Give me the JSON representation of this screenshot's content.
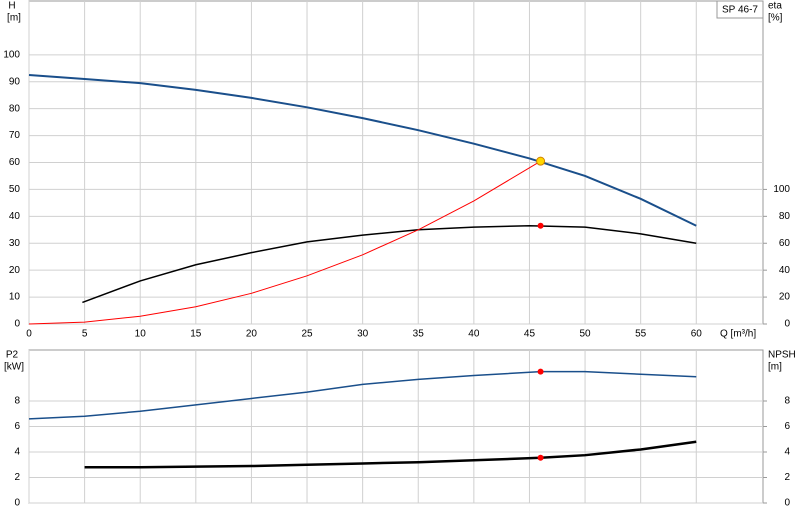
{
  "chart_data": [
    {
      "type": "line",
      "title": "SP 46-7",
      "ylabel": "H",
      "yunit": "[m]",
      "y2label": "eta",
      "y2unit": "[%]",
      "xlabel": "Q [m³/h]",
      "xlim": [
        0,
        66
      ],
      "xticks": [
        0,
        5,
        10,
        15,
        20,
        25,
        30,
        35,
        40,
        45,
        50,
        55,
        60
      ],
      "ylim": [
        0,
        120
      ],
      "yticks": [
        0,
        10,
        20,
        30,
        40,
        50,
        60,
        70,
        80,
        90,
        100
      ],
      "y2lim": [
        0,
        240
      ],
      "y2ticks": [
        0,
        20,
        40,
        60,
        80,
        100
      ],
      "grid": true,
      "series": [
        {
          "color": "#1a4f8b",
          "width": 2,
          "x": [
            0,
            5,
            10,
            15,
            20,
            25,
            30,
            35,
            40,
            45,
            50,
            55,
            60
          ],
          "values": [
            92.5,
            91,
            89.5,
            87,
            84,
            80.5,
            76.5,
            72,
            67,
            61.5,
            55,
            46.5,
            36.5
          ]
        },
        {
          "color": "#000000",
          "width": 1.5,
          "axis": "y2",
          "x": [
            4.8,
            10,
            15,
            20,
            25,
            30,
            35,
            40,
            45,
            50,
            55,
            60
          ],
          "values": [
            16,
            32,
            44,
            53,
            61,
            66,
            70,
            72,
            73,
            72,
            67,
            60
          ]
        },
        {
          "color": "#ff0000",
          "width": 1,
          "x": [
            0,
            5,
            10,
            15,
            20,
            25,
            30,
            35,
            40,
            46
          ],
          "values": [
            0,
            0.7,
            2.9,
            6.4,
            11.4,
            17.9,
            25.7,
            35,
            45.7,
            60.5
          ]
        }
      ],
      "points": [
        {
          "x": 46,
          "y": 60.5,
          "color": "#ffd700"
        },
        {
          "x": 46,
          "y": 73,
          "color": "#ff0000",
          "axis": "y2"
        }
      ]
    },
    {
      "type": "line",
      "ylabel": "P2",
      "yunit": "[kW]",
      "y2label": "NPSH",
      "y2unit": "[m]",
      "xlim": [
        0,
        66
      ],
      "xticks": [
        0,
        5,
        10,
        15,
        20,
        25,
        30,
        35,
        40,
        45,
        50,
        55,
        60
      ],
      "ylim": [
        0,
        12
      ],
      "yticks": [
        0,
        2,
        4,
        6,
        8
      ],
      "y2lim": [
        0,
        12
      ],
      "y2ticks": [
        0,
        2,
        4,
        6,
        8
      ],
      "grid": true,
      "series": [
        {
          "color": "#1a4f8b",
          "width": 1.5,
          "x": [
            0,
            5,
            10,
            15,
            20,
            25,
            30,
            35,
            40,
            46,
            50,
            55,
            60
          ],
          "values": [
            6.6,
            6.8,
            7.2,
            7.7,
            8.2,
            8.7,
            9.3,
            9.7,
            10,
            10.3,
            10.3,
            10.1,
            9.9
          ]
        },
        {
          "color": "#000000",
          "width": 2.5,
          "axis": "y2",
          "x": [
            5,
            10,
            15,
            20,
            25,
            30,
            35,
            40,
            46,
            50,
            55,
            60
          ],
          "values": [
            2.8,
            2.8,
            2.85,
            2.9,
            3,
            3.1,
            3.2,
            3.35,
            3.55,
            3.75,
            4.2,
            4.8
          ]
        }
      ],
      "points": [
        {
          "x": 46,
          "y": 10.3,
          "color": "#ff0000"
        },
        {
          "x": 46,
          "y": 3.55,
          "color": "#ff0000",
          "axis": "y2"
        }
      ]
    }
  ]
}
